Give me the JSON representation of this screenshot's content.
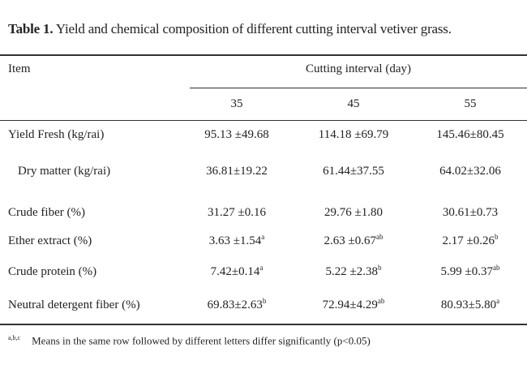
{
  "caption": {
    "label": "Table 1.",
    "text": "Yield and chemical composition of different cutting interval vetiver grass."
  },
  "header": {
    "item": "Item",
    "group": "Cutting interval (day)",
    "columns": [
      "35",
      "45",
      "55"
    ]
  },
  "rows": [
    {
      "label": "Yield Fresh (kg/rai)",
      "indent": false,
      "cells": [
        {
          "value": "95.13 ±49.68",
          "sup": ""
        },
        {
          "value": "114.18 ±69.79",
          "sup": ""
        },
        {
          "value": "145.46±80.45",
          "sup": ""
        }
      ]
    },
    {
      "label": "Dry matter (kg/rai)",
      "indent": true,
      "cells": [
        {
          "value": "36.81±19.22",
          "sup": ""
        },
        {
          "value": "61.44±37.55",
          "sup": ""
        },
        {
          "value": "64.02±32.06",
          "sup": ""
        }
      ]
    },
    {
      "label": "Crude fiber (%)",
      "indent": false,
      "cells": [
        {
          "value": "31.27 ±0.16",
          "sup": ""
        },
        {
          "value": "29.76 ±1.80",
          "sup": ""
        },
        {
          "value": "30.61±0.73",
          "sup": ""
        }
      ]
    },
    {
      "label": "Ether extract (%)",
      "indent": false,
      "cells": [
        {
          "value": "3.63 ±1.54",
          "sup": "a"
        },
        {
          "value": "2.63 ±0.67",
          "sup": "ab"
        },
        {
          "value": "2.17 ±0.26",
          "sup": "b"
        }
      ]
    },
    {
      "label": "Crude protein (%)",
      "indent": false,
      "cells": [
        {
          "value": "7.42±0.14",
          "sup": "a"
        },
        {
          "value": "5.22 ±2.38",
          "sup": "b"
        },
        {
          "value": "5.99 ±0.37",
          "sup": "ab"
        }
      ]
    },
    {
      "label": "Neutral detergent fiber (%)",
      "indent": false,
      "cells": [
        {
          "value": "69.83±2.63",
          "sup": "b"
        },
        {
          "value": "72.94±4.29",
          "sup": "ab"
        },
        {
          "value": "80.93±5.80",
          "sup": "a"
        }
      ]
    }
  ],
  "footnote": {
    "mark": "a,b,c",
    "text": "Means in the same row followed by different letters differ significantly (p<0.05)"
  }
}
